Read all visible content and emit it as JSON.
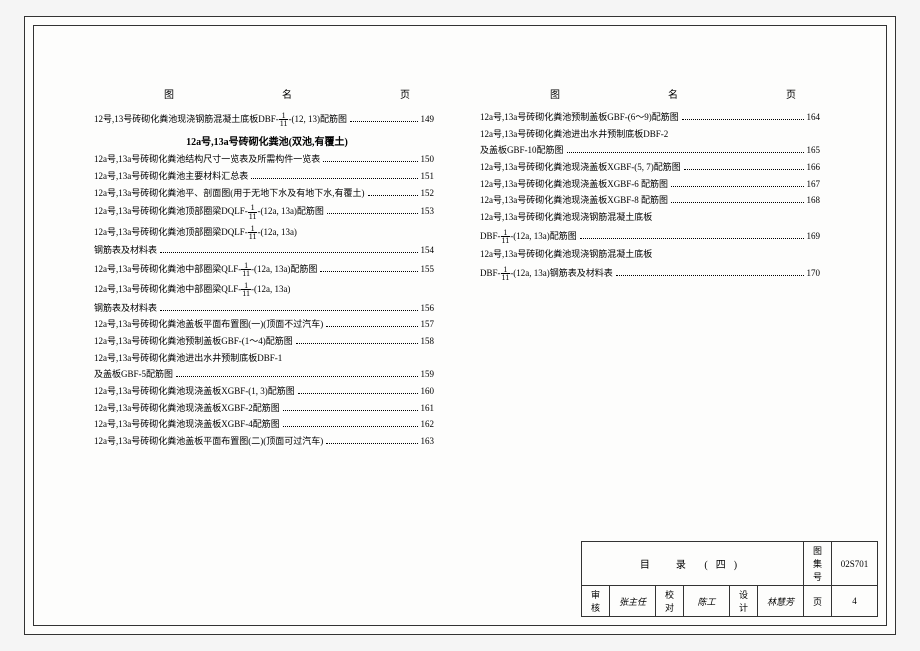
{
  "header": {
    "col1": "图",
    "col2": "名",
    "col3": "页"
  },
  "left": [
    {
      "type": "row",
      "text": "12号,13号砖砌化粪池现浇钢筋混凝土底板DBF-",
      "frac": [
        "1",
        "11"
      ],
      "tail": "-(12, 13)配筋图",
      "page": "149"
    },
    {
      "type": "section",
      "text": "12a号,13a号砖砌化粪池(双池,有覆土)"
    },
    {
      "type": "row",
      "text": "12a号,13a号砖砌化粪池结构尺寸一览表及所需构件一览表",
      "page": "150"
    },
    {
      "type": "row",
      "text": "12a号,13a号砖砌化粪池主要材料汇总表",
      "page": "151"
    },
    {
      "type": "row",
      "text": "12a号,13a号砖砌化粪池平、剖面图(用于无地下水及有地下水,有覆土)",
      "page": "152"
    },
    {
      "type": "row",
      "text": "12a号,13a号砖砌化粪池顶部圈梁DQLF-",
      "frac": [
        "1",
        "11"
      ],
      "tail": "-(12a, 13a)配筋图",
      "page": "153"
    },
    {
      "type": "row",
      "text": "12a号,13a号砖砌化粪池顶部圈梁DQLF-",
      "frac": [
        "1",
        "11"
      ],
      "tail": "-(12a, 13a)",
      "nopage": true
    },
    {
      "type": "row",
      "text": "钢筋表及材料表",
      "page": "154"
    },
    {
      "type": "row",
      "text": "12a号,13a号砖砌化粪池中部圈梁QLF-",
      "frac": [
        "1",
        "11"
      ],
      "tail": "-(12a, 13a)配筋图",
      "page": "155"
    },
    {
      "type": "row",
      "text": "12a号,13a号砖砌化粪池中部圈梁QLF-",
      "frac": [
        "1",
        "11"
      ],
      "tail": "-(12a, 13a)",
      "nopage": true
    },
    {
      "type": "row",
      "text": "钢筋表及材料表",
      "page": "156"
    },
    {
      "type": "row",
      "text": "12a号,13a号砖砌化粪池盖板平面布置图(一)(顶面不过汽车)",
      "page": "157"
    },
    {
      "type": "row",
      "text": "12a号,13a号砖砌化粪池预制盖板GBF-(1～4)配筋图",
      "page": "158"
    },
    {
      "type": "row",
      "text": "12a号,13a号砖砌化粪池进出水井预制底板DBF-1",
      "nopage": true
    },
    {
      "type": "row",
      "text": "及盖板GBF-5配筋图",
      "page": "159"
    },
    {
      "type": "row",
      "text": "12a号,13a号砖砌化粪池现浇盖板XGBF-(1, 3)配筋图",
      "page": "160"
    },
    {
      "type": "row",
      "text": "12a号,13a号砖砌化粪池现浇盖板XGBF-2配筋图",
      "page": "161"
    },
    {
      "type": "row",
      "text": "12a号,13a号砖砌化粪池现浇盖板XGBF-4配筋图",
      "page": "162"
    },
    {
      "type": "row",
      "text": "12a号,13a号砖砌化粪池盖板平面布置图(二)(顶面可过汽车)",
      "page": "163"
    }
  ],
  "right": [
    {
      "type": "row",
      "text": "12a号,13a号砖砌化粪池预制盖板GBF-(6～9)配筋图",
      "page": "164"
    },
    {
      "type": "row",
      "text": "12a号,13a号砖砌化粪池进出水井预制底板DBF-2",
      "nopage": true
    },
    {
      "type": "row",
      "text": "及盖板GBF-10配筋图",
      "page": "165"
    },
    {
      "type": "row",
      "text": "12a号,13a号砖砌化粪池现浇盖板XGBF-(5, 7)配筋图",
      "page": "166"
    },
    {
      "type": "row",
      "text": "12a号,13a号砖砌化粪池现浇盖板XGBF-6 配筋图",
      "page": "167"
    },
    {
      "type": "row",
      "text": "12a号,13a号砖砌化粪池现浇盖板XGBF-8 配筋图",
      "page": "168"
    },
    {
      "type": "row",
      "text": "12a号,13a号砖砌化粪池现浇钢筋混凝土底板",
      "nopage": true
    },
    {
      "type": "row",
      "text": "DBF-",
      "frac": [
        "1",
        "11"
      ],
      "tail": "-(12a, 13a)配筋图",
      "page": "169"
    },
    {
      "type": "row",
      "text": "12a号,13a号砖砌化粪池现浇钢筋混凝土底板",
      "nopage": true
    },
    {
      "type": "row",
      "text": "DBF-",
      "frac": [
        "1",
        "11"
      ],
      "tail": "-(12a, 13a)钢筋表及材料表",
      "page": "170"
    }
  ],
  "titleblock": {
    "title": "目　录 (四)",
    "code_label": "图集号",
    "code": "02S701",
    "row2_l1": "审核",
    "row2_v1": "张主任",
    "row2_l2": "校对",
    "row2_v2": "陈工",
    "row2_l3": "设计",
    "row2_v3": "林慧芳",
    "page_label": "页",
    "page": "4"
  }
}
